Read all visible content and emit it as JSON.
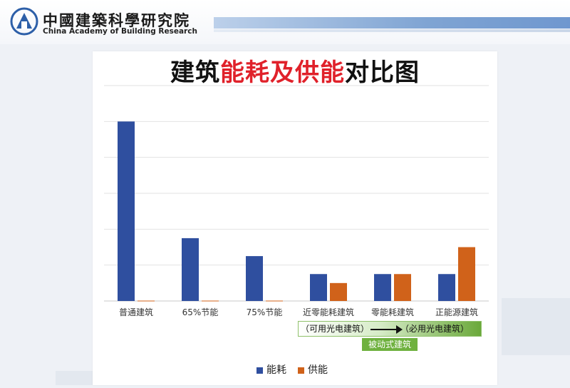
{
  "header": {
    "org_cn": "中國建築科學研究院",
    "org_en": "China Academy of Building Research",
    "logo_icon": "cabr-logo-icon"
  },
  "slide": {
    "title_part1": "建筑",
    "title_part2": "能耗及供能",
    "title_part3": "对比图",
    "annotation_left": "（可用光电建筑）",
    "annotation_right": "（必用光电建筑）",
    "passive_label": "被动式建筑"
  },
  "colors": {
    "series_energy": "#2f4f9f",
    "series_supply": "#d0621a",
    "title_red": "#e0212a",
    "passive_green": "#6fb13f"
  },
  "chart_data": {
    "type": "bar",
    "title": "建筑能耗及供能对比图",
    "categories": [
      "普通建筑",
      "65%节能",
      "75%节能",
      "近零能耗建筑",
      "零能耗建筑",
      "正能源建筑"
    ],
    "series": [
      {
        "name": "能耗",
        "values": [
          100,
          35,
          25,
          15,
          15,
          15
        ]
      },
      {
        "name": "供能",
        "values": [
          0.2,
          0.2,
          0.2,
          10,
          15,
          30
        ]
      }
    ],
    "ylim": [
      0,
      120
    ],
    "grid": true,
    "legend": "bottom",
    "xlabel": "",
    "ylabel": ""
  }
}
